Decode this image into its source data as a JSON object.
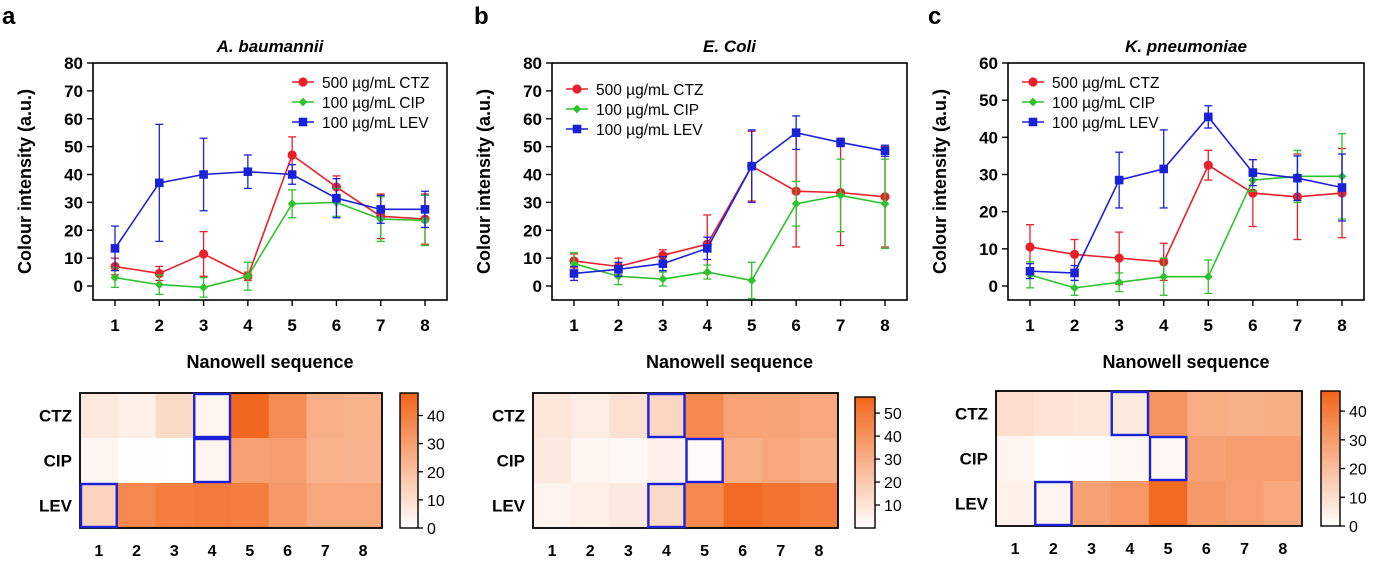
{
  "colors": {
    "CTZ": "#e8202a",
    "CIP": "#2ec22e",
    "LEV": "#1a22d8",
    "heat_low": "#ffffff",
    "heat_high": "#f26419",
    "highlight": "#1a22d8"
  },
  "chart_data": [
    {
      "type": "line",
      "panel_label": "a",
      "title": "A. baumannii",
      "xlabel": "Nanowell sequence",
      "ylabel": "Colour intensity (a.u.)",
      "x": [
        1,
        2,
        3,
        4,
        5,
        6,
        7,
        8
      ],
      "ylim": [
        0,
        80
      ],
      "yticks": [
        0,
        10,
        20,
        30,
        40,
        50,
        60,
        70,
        80
      ],
      "legend_position": "top-right",
      "series": [
        {
          "name": "500 µg/mL CTZ",
          "key": "CTZ",
          "marker": "circle",
          "values": [
            7,
            4.5,
            11.5,
            3.5,
            47,
            35.5,
            25,
            24
          ],
          "errors": [
            3,
            2.5,
            8,
            1.5,
            6.5,
            4,
            8,
            9
          ]
        },
        {
          "name": "100 µg/mL CIP",
          "key": "CIP",
          "marker": "diamond",
          "values": [
            3,
            0.5,
            -0.5,
            3.5,
            29.5,
            30,
            24,
            23.5
          ],
          "errors": [
            3.5,
            3.5,
            3.5,
            5,
            5,
            5,
            8,
            9
          ]
        },
        {
          "name": "100 µg/mL LEV",
          "key": "LEV",
          "marker": "square",
          "values": [
            13.5,
            37,
            40,
            41,
            40,
            31.5,
            27.5,
            27.5
          ],
          "errors": [
            8,
            21,
            13,
            6,
            3.5,
            7,
            5,
            6.5
          ]
        }
      ]
    },
    {
      "type": "line",
      "panel_label": "b",
      "title": "E. Coli",
      "xlabel": "Nanowell sequence",
      "ylabel": "Colour intensity (a.u.)",
      "x": [
        1,
        2,
        3,
        4,
        5,
        6,
        7,
        8
      ],
      "ylim": [
        0,
        80
      ],
      "yticks": [
        0,
        10,
        20,
        30,
        40,
        50,
        60,
        70,
        80
      ],
      "legend_position": "top-left",
      "series": [
        {
          "name": "500 µg/mL CTZ",
          "key": "CTZ",
          "marker": "circle",
          "values": [
            9,
            7,
            11,
            15,
            43,
            34,
            33.5,
            32
          ],
          "errors": [
            2.5,
            3,
            2,
            10.5,
            12.5,
            20,
            19,
            18
          ]
        },
        {
          "name": "100 µg/mL CIP",
          "key": "CIP",
          "marker": "diamond",
          "values": [
            8,
            3.5,
            2.5,
            5,
            2,
            29.5,
            32.5,
            29.5
          ],
          "errors": [
            4,
            3,
            2.5,
            2.5,
            6.5,
            8,
            13,
            16
          ]
        },
        {
          "name": "100 µg/mL LEV",
          "key": "LEV",
          "marker": "square",
          "values": [
            4.5,
            6,
            8,
            13.5,
            43,
            55,
            51.5,
            48.5
          ],
          "errors": [
            2.5,
            2.5,
            2.5,
            4,
            13,
            6,
            1.5,
            2
          ]
        }
      ]
    },
    {
      "type": "line",
      "panel_label": "c",
      "title": "K. pneumoniae",
      "xlabel": "Nanowell sequence",
      "ylabel": "Colour intensity (a.u.)",
      "x": [
        1,
        2,
        3,
        4,
        5,
        6,
        7,
        8
      ],
      "ylim": [
        0,
        60
      ],
      "yticks": [
        0,
        10,
        20,
        30,
        40,
        50,
        60
      ],
      "legend_position": "top-left",
      "series": [
        {
          "name": "500 µg/mL CTZ",
          "key": "CTZ",
          "marker": "circle",
          "values": [
            10.5,
            8.5,
            7.5,
            6.5,
            32.5,
            25,
            24,
            25
          ],
          "errors": [
            6,
            4,
            7,
            5,
            4,
            9,
            11.5,
            12
          ]
        },
        {
          "name": "100 µg/mL CIP",
          "key": "CIP",
          "marker": "diamond",
          "values": [
            3,
            -0.5,
            1,
            2.5,
            2.5,
            28.5,
            29.5,
            29.5
          ],
          "errors": [
            3.5,
            2,
            2.5,
            5,
            4.5,
            3,
            7,
            11.5
          ]
        },
        {
          "name": "100 µg/mL LEV",
          "key": "LEV",
          "marker": "square",
          "values": [
            4,
            3.5,
            28.5,
            31.5,
            45.5,
            30.5,
            29,
            26.5
          ],
          "errors": [
            2,
            2,
            7.5,
            10.5,
            3,
            3.5,
            6,
            9
          ]
        }
      ]
    },
    {
      "type": "heatmap",
      "panel_label": "a",
      "rows": [
        "CTZ",
        "CIP",
        "LEV"
      ],
      "columns": [
        "1",
        "2",
        "3",
        "4",
        "5",
        "6",
        "7",
        "8"
      ],
      "values": [
        [
          7,
          4.5,
          11.5,
          3.5,
          47,
          35.5,
          25,
          24
        ],
        [
          3,
          0.5,
          0,
          3.5,
          29.5,
          30,
          24,
          23.5
        ],
        [
          13.5,
          37,
          40,
          41,
          40,
          31.5,
          27.5,
          27.5
        ]
      ],
      "color_range": [
        0,
        48
      ],
      "colorbar_ticks": [
        0,
        10,
        20,
        30,
        40
      ],
      "highlighted_cells": [
        [
          0,
          3
        ],
        [
          1,
          3
        ],
        [
          2,
          0
        ]
      ]
    },
    {
      "type": "heatmap",
      "panel_label": "b",
      "rows": [
        "CTZ",
        "CIP",
        "LEV"
      ],
      "columns": [
        "1",
        "2",
        "3",
        "4",
        "5",
        "6",
        "7",
        "8"
      ],
      "values": [
        [
          9,
          7,
          11,
          15,
          43,
          34,
          33.5,
          32
        ],
        [
          8,
          3.5,
          2.5,
          5,
          2,
          29.5,
          32.5,
          29.5
        ],
        [
          4.5,
          6,
          8,
          13.5,
          43,
          55,
          51.5,
          48.5
        ]
      ],
      "color_range": [
        0,
        57
      ],
      "colorbar_ticks": [
        10,
        20,
        30,
        40,
        50
      ],
      "highlighted_cells": [
        [
          0,
          3
        ],
        [
          1,
          4
        ],
        [
          2,
          3
        ]
      ]
    },
    {
      "type": "heatmap",
      "panel_label": "c",
      "rows": [
        "CTZ",
        "CIP",
        "LEV"
      ],
      "columns": [
        "1",
        "2",
        "3",
        "4",
        "5",
        "6",
        "7",
        "8"
      ],
      "values": [
        [
          10.5,
          8.5,
          7.5,
          6.5,
          32.5,
          25,
          24,
          25
        ],
        [
          3,
          0,
          1,
          2.5,
          2.5,
          28.5,
          29.5,
          29.5
        ],
        [
          4,
          3.5,
          28.5,
          31.5,
          45.5,
          30.5,
          29,
          26.5
        ]
      ],
      "color_range": [
        0,
        47
      ],
      "colorbar_ticks": [
        0,
        10,
        20,
        30,
        40
      ],
      "highlighted_cells": [
        [
          0,
          3
        ],
        [
          1,
          4
        ],
        [
          2,
          1
        ]
      ]
    }
  ]
}
